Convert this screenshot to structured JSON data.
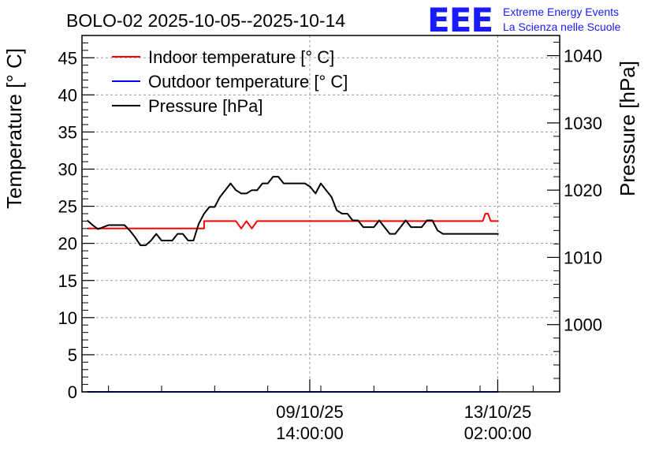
{
  "title": "BOLO-02 2025-10-05--2025-10-14",
  "logo": {
    "mark": "EEE",
    "line1": "Extreme Energy Events",
    "line2": "La Scienza nelle Scuole",
    "color": "#1a1aff"
  },
  "chart_data": {
    "type": "line",
    "title": "BOLO-02 2025-10-05--2025-10-14",
    "x_unit": "days",
    "x_tick_labels": [
      {
        "day": 4.2917,
        "date": "09/10/25",
        "time": "14:00:00"
      },
      {
        "day": 7.8333,
        "date": "13/10/25",
        "time": "02:00:00"
      }
    ],
    "xlim": [
      0,
      9
    ],
    "ylabel_left": "Temperature [° C]",
    "ylim_left": [
      0,
      48
    ],
    "yticks_left": [
      0,
      5,
      10,
      15,
      20,
      25,
      30,
      35,
      40,
      45
    ],
    "ylabel_right": "Pressure [hPa]",
    "ylim_right": [
      990,
      1043
    ],
    "yticks_right": [
      1000,
      1010,
      1020,
      1030,
      1040
    ],
    "grid": true,
    "legend_position": "top-left",
    "series": [
      {
        "name": "Indoor temperature [° C]",
        "color": "#ff0000",
        "axis": "left",
        "x": [
          0.1,
          2.3,
          2.3,
          2.9,
          2.95,
          3.0,
          3.05,
          3.1,
          3.15,
          3.2,
          3.25,
          3.3,
          3.35,
          3.4,
          7.55,
          7.6,
          7.65,
          7.7,
          7.7,
          7.85
        ],
        "values": [
          22,
          22,
          23,
          23,
          22.5,
          22,
          22.5,
          23,
          22.5,
          22,
          22.5,
          23,
          23,
          23,
          23,
          24,
          24,
          23,
          23,
          23
        ]
      },
      {
        "name": "Outdoor temperature [° C]",
        "color": "#0000ff",
        "axis": "left",
        "x": [
          0.1,
          7.85
        ],
        "values": [
          0,
          0
        ]
      },
      {
        "name": "Pressure [hPa]",
        "color": "#000000",
        "axis": "right",
        "x": [
          0.1,
          0.2,
          0.3,
          0.4,
          0.5,
          0.6,
          0.7,
          0.8,
          0.9,
          1.0,
          1.1,
          1.2,
          1.3,
          1.4,
          1.5,
          1.6,
          1.7,
          1.8,
          1.9,
          2.0,
          2.1,
          2.2,
          2.3,
          2.4,
          2.5,
          2.6,
          2.7,
          2.8,
          2.9,
          3.0,
          3.1,
          3.2,
          3.3,
          3.4,
          3.5,
          3.6,
          3.7,
          3.8,
          3.9,
          4.0,
          4.1,
          4.2,
          4.3,
          4.4,
          4.5,
          4.6,
          4.7,
          4.8,
          4.9,
          5.0,
          5.1,
          5.2,
          5.3,
          5.4,
          5.5,
          5.6,
          5.7,
          5.8,
          5.9,
          6.0,
          6.1,
          6.2,
          6.3,
          6.4,
          6.5,
          6.6,
          6.7,
          6.8,
          6.9,
          7.0,
          7.1,
          7.2,
          7.3,
          7.4,
          7.5,
          7.6,
          7.7,
          7.8,
          7.85
        ],
        "values": [
          1015.5,
          1014.8,
          1014.2,
          1014.5,
          1014.8,
          1014.8,
          1014.8,
          1014.8,
          1014.0,
          1013.0,
          1011.8,
          1011.8,
          1012.5,
          1013.5,
          1012.5,
          1012.5,
          1012.5,
          1013.5,
          1013.5,
          1012.5,
          1012.5,
          1015.0,
          1016.5,
          1017.5,
          1017.5,
          1019.0,
          1020.0,
          1021.0,
          1020.0,
          1019.5,
          1019.5,
          1020.0,
          1020.0,
          1021.0,
          1021.0,
          1022.0,
          1022.0,
          1021.0,
          1021.0,
          1021.0,
          1021.0,
          1021.0,
          1020.5,
          1019.5,
          1021.0,
          1020.0,
          1019.0,
          1017.0,
          1016.5,
          1016.5,
          1015.5,
          1015.5,
          1014.5,
          1014.5,
          1014.5,
          1015.5,
          1014.5,
          1013.5,
          1013.5,
          1014.5,
          1015.5,
          1014.5,
          1014.5,
          1014.5,
          1015.5,
          1015.5,
          1014.0,
          1013.5,
          1013.5,
          1013.5,
          1013.5,
          1013.5,
          1013.5,
          1013.5,
          1013.5,
          1013.5,
          1013.5,
          1013.5,
          1013.5
        ]
      }
    ]
  }
}
